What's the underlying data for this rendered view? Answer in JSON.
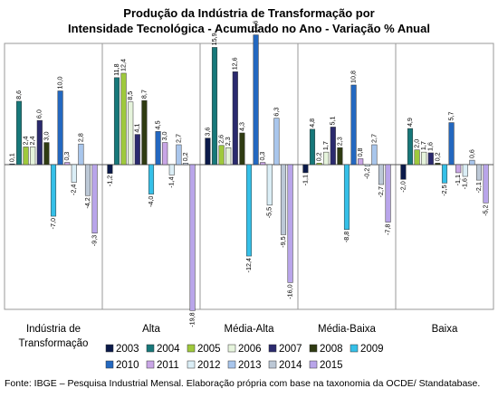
{
  "chart_data": {
    "type": "bar",
    "title_lines": [
      "Produção da Indústria de Transformação por",
      "Intensidade Tecnológica -  Acumulado no Ano - Variação % Anual"
    ],
    "categories": [
      [
        "Indústria de",
        "Transformação"
      ],
      [
        "Alta"
      ],
      [
        "Média-Alta"
      ],
      [
        "Média-Baixa"
      ],
      [
        "Baixa"
      ]
    ],
    "ylim": [
      -21,
      19
    ],
    "grid": false,
    "legend_position": "bottom",
    "series": [
      {
        "name": "2003",
        "color": "#0b1a4a",
        "values": [
          0.1,
          -1.2,
          3.6,
          -1.1,
          -2.0
        ]
      },
      {
        "name": "2004",
        "color": "#17787a",
        "values": [
          8.6,
          11.8,
          15.9,
          4.8,
          4.9
        ]
      },
      {
        "name": "2005",
        "color": "#9fc93c",
        "values": [
          2.4,
          12.4,
          2.6,
          0.2,
          2.0
        ]
      },
      {
        "name": "2006",
        "color": "#e6f4dc",
        "values": [
          2.4,
          8.5,
          2.3,
          1.7,
          1.7
        ]
      },
      {
        "name": "2007",
        "color": "#2b2a6e",
        "values": [
          6.0,
          4.1,
          12.6,
          5.1,
          1.6
        ]
      },
      {
        "name": "2008",
        "color": "#2f3b12",
        "values": [
          3.0,
          8.7,
          4.3,
          2.3,
          0.2
        ]
      },
      {
        "name": "2009",
        "color": "#35c0e8",
        "values": [
          -7.0,
          -4.0,
          -12.4,
          -8.8,
          -2.5
        ]
      },
      {
        "name": "2010",
        "color": "#2368c0",
        "values": [
          10.0,
          4.5,
          17.6,
          10.8,
          5.7
        ]
      },
      {
        "name": "2011",
        "color": "#c9a6e6",
        "values": [
          0.3,
          3.0,
          0.3,
          0.8,
          -1.1
        ]
      },
      {
        "name": "2012",
        "color": "#dbeef6",
        "values": [
          -2.4,
          -1.4,
          -5.5,
          -0.2,
          -1.6
        ]
      },
      {
        "name": "2013",
        "color": "#a9c6ec",
        "values": [
          2.8,
          2.7,
          6.3,
          2.7,
          0.6
        ]
      },
      {
        "name": "2014",
        "color": "#bcc8d6",
        "values": [
          -4.2,
          0.2,
          -9.5,
          -2.7,
          -2.1
        ]
      },
      {
        "name": "2015",
        "color": "#b9a5ea",
        "values": [
          -9.3,
          -19.8,
          -16.0,
          -7.8,
          -5.2
        ]
      }
    ]
  },
  "source": "Fonte: IBGE – Pesquisa Industrial Mensal. Elaboração própria com base na taxonomia da OCDE/ Standatabase."
}
